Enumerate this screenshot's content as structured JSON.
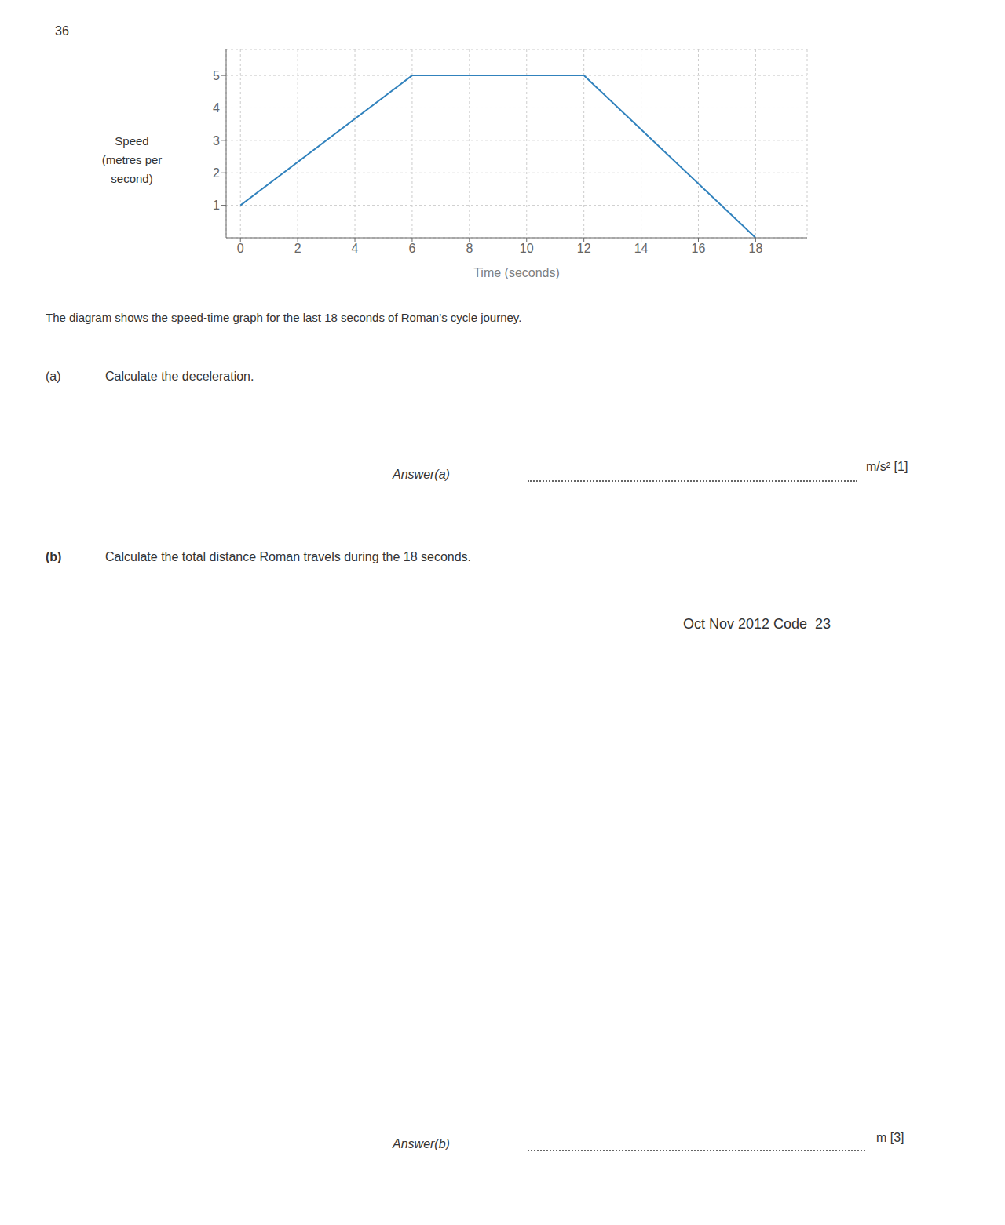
{
  "chart_data": {
    "type": "line",
    "x": [
      0,
      6,
      12,
      18
    ],
    "values": [
      1,
      5,
      5,
      0
    ],
    "xlim": [
      -0.5,
      19.8
    ],
    "ylim": [
      0,
      5.8
    ],
    "xticks": [
      0,
      2,
      4,
      6,
      8,
      10,
      12,
      14,
      16,
      18
    ],
    "yticks": [
      1,
      2,
      3,
      4,
      5
    ],
    "xlabel": "Time (seconds)",
    "ylabel": "Speed\n(metres per\nsecond)",
    "grid": true,
    "annotations": [
      "36",
      "The diagram shows the speed-time graph for the last 18 seconds of Roman’s cycle journey.",
      "(a)",
      "Calculate the deceleration.",
      "Answer(a)",
      "m/s² [1]",
      "(b)",
      "Calculate the total distance Roman travels during the 18 seconds.",
      "Oct Nov 2012 Code  23",
      "Answer(b)",
      "m [3]"
    ]
  }
}
